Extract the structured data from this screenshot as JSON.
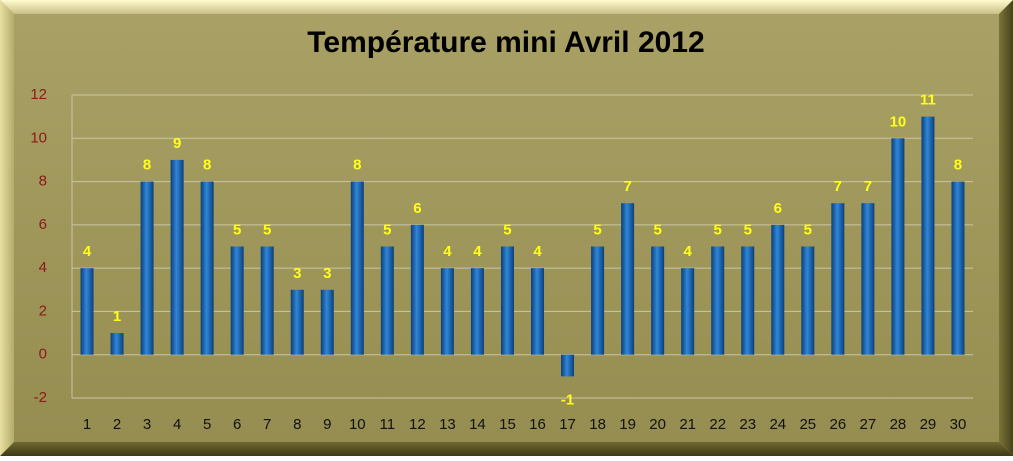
{
  "chart_data": {
    "type": "bar",
    "title": "Température mini Avril 2012",
    "categories": [
      "1",
      "2",
      "3",
      "4",
      "5",
      "6",
      "7",
      "8",
      "9",
      "10",
      "11",
      "12",
      "13",
      "14",
      "15",
      "16",
      "17",
      "18",
      "19",
      "20",
      "21",
      "22",
      "23",
      "24",
      "25",
      "26",
      "27",
      "28",
      "29",
      "30"
    ],
    "values": [
      4,
      1,
      8,
      9,
      8,
      5,
      5,
      3,
      3,
      8,
      5,
      6,
      4,
      4,
      5,
      4,
      -1,
      5,
      7,
      5,
      4,
      5,
      5,
      6,
      5,
      7,
      7,
      10,
      11,
      8
    ],
    "color": "#1565b8",
    "ylim": [
      -2,
      12
    ],
    "yticks": [
      -2,
      0,
      2,
      4,
      6,
      8,
      10,
      12
    ],
    "grid": true
  }
}
